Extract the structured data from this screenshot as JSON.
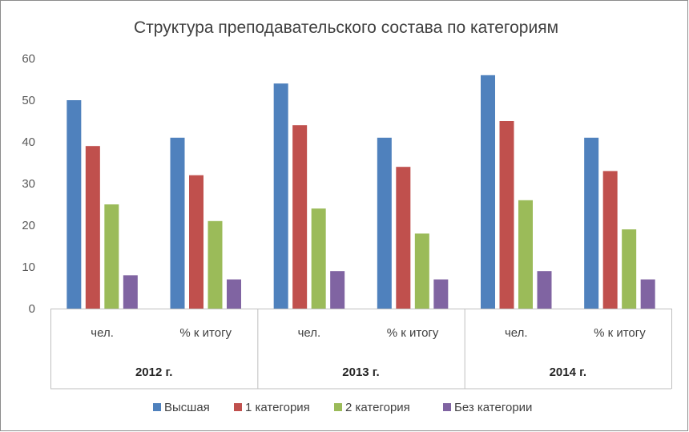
{
  "chart_data": {
    "type": "bar",
    "title": "Структура преподавательского состава по категориям",
    "xlabel": "",
    "ylabel": "",
    "ylim": [
      0,
      60
    ],
    "yticks": [
      0,
      10,
      20,
      30,
      40,
      50,
      60
    ],
    "grid": false,
    "legend_position": "bottom",
    "groups": [
      {
        "year": "2012 г.",
        "categories": [
          "чел.",
          "% к итогу"
        ]
      },
      {
        "year": "2013 г.",
        "categories": [
          "чел.",
          "% к итогу"
        ]
      },
      {
        "year": "2014 г.",
        "categories": [
          "чел.",
          "% к итогу"
        ]
      }
    ],
    "categories": [
      "2012 г. чел.",
      "2012 г. % к итогу",
      "2013 г. чел.",
      "2013 г. % к итогу",
      "2014 г. чел.",
      "2014 г. % к итогу"
    ],
    "series": [
      {
        "name": "Высшая",
        "color": "#4F81BD",
        "values": [
          50,
          41,
          54,
          41,
          56,
          41
        ]
      },
      {
        "name": "1 категория",
        "color": "#C0504D",
        "values": [
          39,
          32,
          44,
          34,
          45,
          33
        ]
      },
      {
        "name": "2 категория",
        "color": "#9BBB59",
        "values": [
          25,
          21,
          24,
          18,
          26,
          19
        ]
      },
      {
        "name": "Без категории",
        "color": "#8064A2",
        "values": [
          8,
          7,
          9,
          7,
          9,
          7
        ]
      }
    ]
  }
}
